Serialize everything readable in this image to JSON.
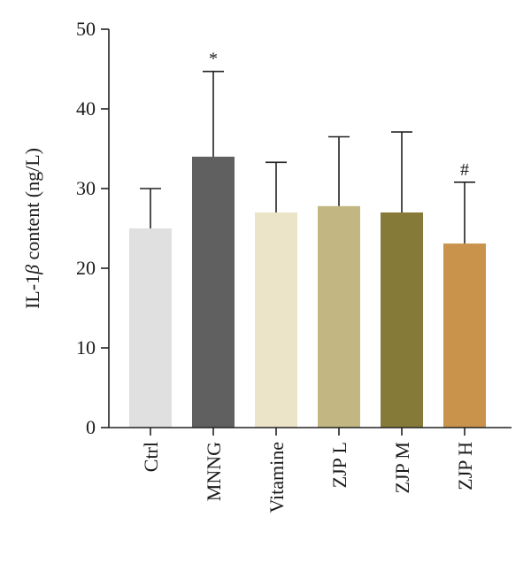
{
  "chart_data": {
    "type": "bar",
    "categories": [
      "Ctrl",
      "MNNG",
      "Vitamine",
      "ZJP L",
      "ZJP M",
      "ZJP H"
    ],
    "values": [
      25.0,
      34.0,
      27.0,
      27.8,
      27.0,
      23.1
    ],
    "error_upper": [
      30.0,
      44.7,
      33.3,
      36.5,
      37.1,
      30.8
    ],
    "annotations": [
      "",
      "*",
      "",
      "",
      "",
      "#"
    ],
    "colors": [
      "#e0e0e0",
      "#606060",
      "#ebe4c8",
      "#c2b782",
      "#857a38",
      "#c9934c"
    ],
    "xlabel": "",
    "ylabel_prefix": "IL-1",
    "ylabel_greek": "β",
    "ylabel_suffix": " content (ng/L)",
    "ylim": [
      0,
      50
    ],
    "yticks": [
      "0",
      "10",
      "20",
      "30",
      "40",
      "50"
    ],
    "grid": false
  }
}
